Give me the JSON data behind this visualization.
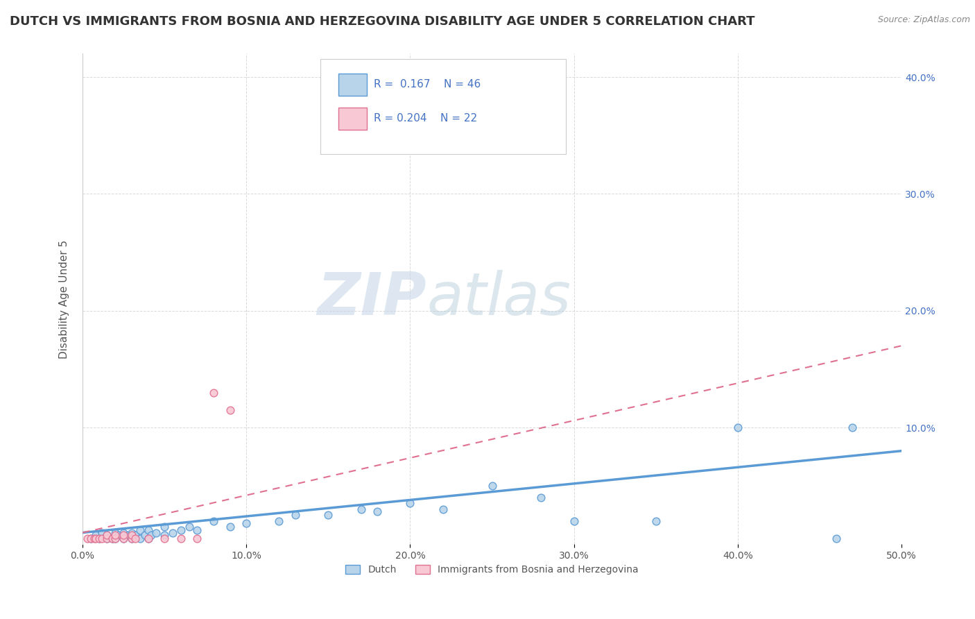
{
  "title": "DUTCH VS IMMIGRANTS FROM BOSNIA AND HERZEGOVINA DISABILITY AGE UNDER 5 CORRELATION CHART",
  "source": "Source: ZipAtlas.com",
  "ylabel": "Disability Age Under 5",
  "xlabel": "",
  "xlim": [
    0.0,
    0.5
  ],
  "ylim": [
    0.0,
    0.42
  ],
  "xticks": [
    0.0,
    0.1,
    0.2,
    0.3,
    0.4,
    0.5
  ],
  "yticks": [
    0.1,
    0.2,
    0.3,
    0.4
  ],
  "ytick_labels": [
    "10.0%",
    "20.0%",
    "30.0%",
    "40.0%"
  ],
  "xtick_labels": [
    "0.0%",
    "10.0%",
    "20.0%",
    "30.0%",
    "40.0%",
    "50.0%"
  ],
  "dutch_color_fill": "#b8d4ea",
  "dutch_color_edge": "#5b9bd5",
  "bih_color_fill": "#f8c8d4",
  "bih_color_edge": "#e07090",
  "dutch_scatter_x": [
    0.005,
    0.008,
    0.01,
    0.012,
    0.015,
    0.015,
    0.018,
    0.02,
    0.02,
    0.022,
    0.025,
    0.025,
    0.028,
    0.03,
    0.03,
    0.032,
    0.035,
    0.035,
    0.038,
    0.04,
    0.04,
    0.042,
    0.045,
    0.05,
    0.05,
    0.055,
    0.06,
    0.065,
    0.07,
    0.08,
    0.09,
    0.1,
    0.12,
    0.13,
    0.15,
    0.17,
    0.18,
    0.2,
    0.22,
    0.25,
    0.28,
    0.3,
    0.35,
    0.4,
    0.46,
    0.47
  ],
  "dutch_scatter_y": [
    0.005,
    0.008,
    0.005,
    0.01,
    0.005,
    0.008,
    0.005,
    0.01,
    0.005,
    0.008,
    0.005,
    0.01,
    0.008,
    0.005,
    0.01,
    0.008,
    0.005,
    0.012,
    0.008,
    0.005,
    0.012,
    0.008,
    0.01,
    0.008,
    0.015,
    0.01,
    0.012,
    0.015,
    0.012,
    0.02,
    0.015,
    0.018,
    0.02,
    0.025,
    0.025,
    0.03,
    0.028,
    0.035,
    0.03,
    0.05,
    0.04,
    0.02,
    0.02,
    0.1,
    0.005,
    0.1
  ],
  "bih_scatter_x": [
    0.003,
    0.005,
    0.007,
    0.008,
    0.01,
    0.012,
    0.015,
    0.015,
    0.018,
    0.02,
    0.02,
    0.025,
    0.025,
    0.03,
    0.03,
    0.032,
    0.04,
    0.05,
    0.06,
    0.07,
    0.08,
    0.09
  ],
  "bih_scatter_y": [
    0.005,
    0.005,
    0.005,
    0.005,
    0.005,
    0.005,
    0.005,
    0.008,
    0.005,
    0.005,
    0.008,
    0.005,
    0.008,
    0.005,
    0.008,
    0.005,
    0.005,
    0.005,
    0.005,
    0.005,
    0.13,
    0.115
  ],
  "dutch_trendline_x": [
    0.0,
    0.5
  ],
  "dutch_trendline_y": [
    0.01,
    0.08
  ],
  "bih_trendline_x": [
    0.0,
    0.5
  ],
  "bih_trendline_y": [
    0.01,
    0.17
  ],
  "background_color": "#ffffff",
  "grid_color": "#d0d0d0",
  "watermark_zip": "ZIP",
  "watermark_atlas": "atlas",
  "title_fontsize": 13,
  "label_fontsize": 11,
  "legend_R1": "0.167",
  "legend_N1": "46",
  "legend_R2": "0.204",
  "legend_N2": "22"
}
